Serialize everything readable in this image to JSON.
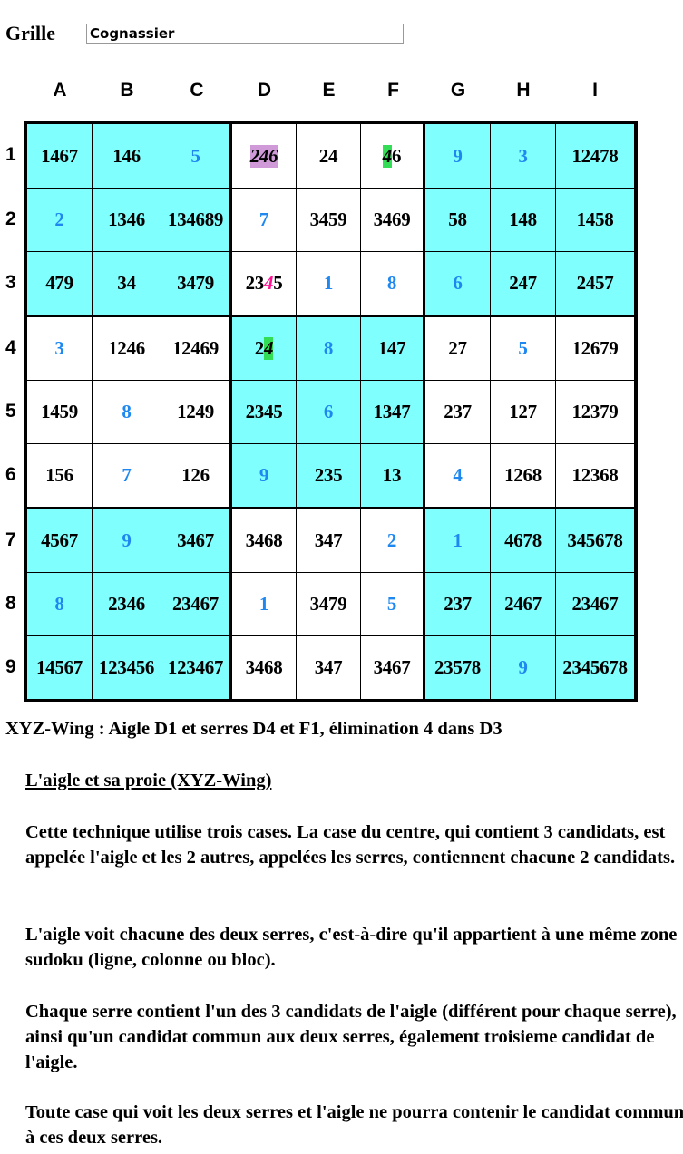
{
  "form": {
    "label": "Grille",
    "value": "Cognassier"
  },
  "grid": {
    "columns": [
      "A",
      "B",
      "C",
      "D",
      "E",
      "F",
      "G",
      "H",
      "I"
    ],
    "rows": [
      "1",
      "2",
      "3",
      "4",
      "5",
      "6",
      "7",
      "8",
      "9"
    ],
    "cells": [
      [
        "1467",
        "146",
        "5",
        "246",
        "24",
        "46",
        "9",
        "3",
        "12478"
      ],
      [
        "2",
        "1346",
        "134689",
        "7",
        "3459",
        "3469",
        "58",
        "148",
        "1458"
      ],
      [
        "479",
        "34",
        "3479",
        "2345",
        "1",
        "8",
        "6",
        "247",
        "2457"
      ],
      [
        "3",
        "1246",
        "12469",
        "24",
        "8",
        "147",
        "27",
        "5",
        "12679"
      ],
      [
        "1459",
        "8",
        "1249",
        "2345",
        "6",
        "1347",
        "237",
        "127",
        "12379"
      ],
      [
        "156",
        "7",
        "126",
        "9",
        "235",
        "13",
        "4",
        "1268",
        "12368"
      ],
      [
        "4567",
        "9",
        "3467",
        "3468",
        "347",
        "2",
        "1",
        "4678",
        "345678"
      ],
      [
        "8",
        "2346",
        "23467",
        "1",
        "3479",
        "5",
        "237",
        "2467",
        "23467"
      ],
      [
        "14567",
        "123456",
        "123467",
        "3468",
        "347",
        "3467",
        "23578",
        "9",
        "2345678"
      ]
    ],
    "solved_cells": [
      "C1",
      "G1",
      "H1",
      "A2",
      "D2",
      "E3",
      "F3",
      "G3",
      "A4",
      "E4",
      "H4",
      "B5",
      "E5",
      "B6",
      "D6",
      "G6",
      "B7",
      "F7",
      "G7",
      "A8",
      "D8",
      "F8",
      "H9"
    ],
    "highlights": [
      {
        "cell": "D1",
        "digits": "246",
        "style": "purple",
        "role": "aigle"
      },
      {
        "cell": "F1",
        "digits": "4",
        "style": "green",
        "role": "serre"
      },
      {
        "cell": "D4",
        "digits": "4",
        "style": "green",
        "role": "serre"
      },
      {
        "cell": "D3",
        "digits": "4",
        "style": "pink",
        "role": "elimination"
      }
    ],
    "colors": {
      "shaded": "#80ffff",
      "solved": "#1e88f0",
      "purple": "#d09ad8",
      "green": "#33dd55",
      "pink": "#ff1493"
    }
  },
  "message": "XYZ-Wing : Aigle D1 et serres D4 et F1, élimination 4 dans D3",
  "explanation": {
    "title": "L'aigle et sa proie (XYZ-Wing)",
    "paragraphs": [
      "Cette technique utilise trois cases. La case du centre, qui contient 3 candidats, est appelée l'aigle et les 2 autres, appelées les serres, contiennent chacune 2 candidats.",
      "L'aigle voit chacune des deux serres, c'est-à-dire qu'il appartient à une même zone sudoku (ligne, colonne ou bloc).",
      "Chaque serre contient l'un des 3 candidats de l'aigle (différent pour chaque serre), ainsi qu'un candidat commun aux deux serres, également troisieme candidat de l'aigle.",
      "Toute case qui voit les deux serres et l'aigle ne pourra contenir le candidat commun à ces deux serres."
    ]
  }
}
